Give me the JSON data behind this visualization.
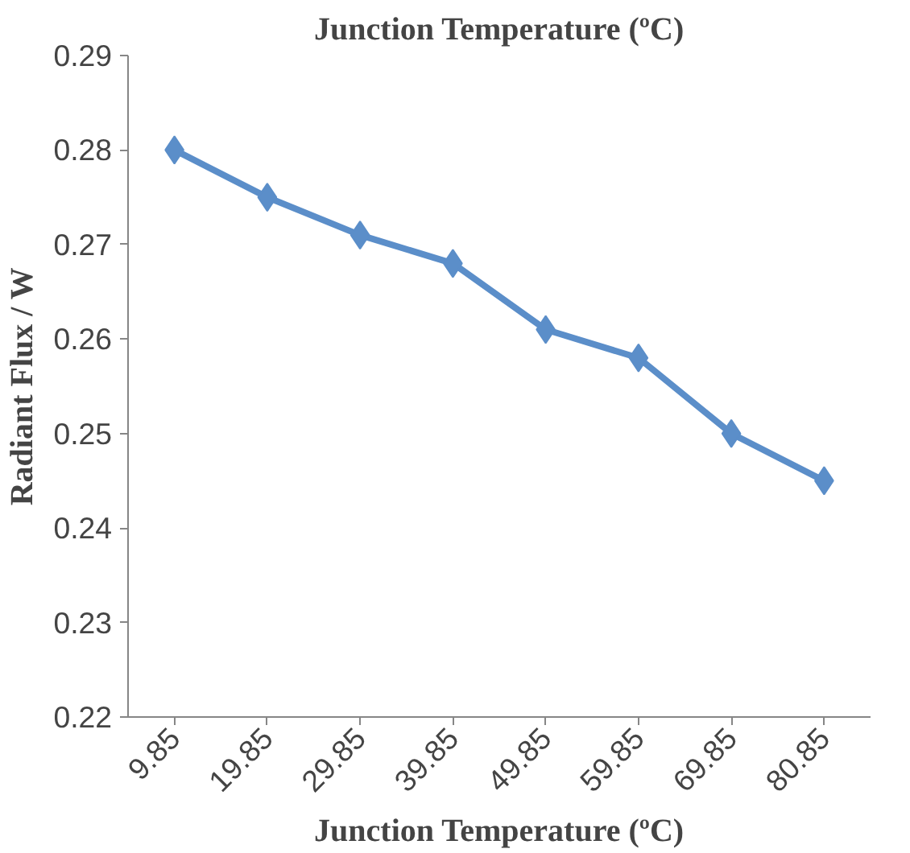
{
  "chart_data": {
    "type": "line",
    "title": "Junction Temperature (ºC)",
    "xlabel": "Junction Temperature (ºC)",
    "ylabel": "Radiant Flux / W",
    "categories": [
      "9.85",
      "19.85",
      "29.85",
      "39.85",
      "49.85",
      "59.85",
      "69.85",
      "80.85"
    ],
    "series": [
      {
        "color": "#5b8ec9",
        "values": [
          0.28,
          0.275,
          0.271,
          0.268,
          0.261,
          0.258,
          0.25,
          0.245
        ]
      }
    ],
    "ylim": [
      0.22,
      0.29
    ],
    "yticks": [
      0.22,
      0.23,
      0.24,
      0.25,
      0.26,
      0.27,
      0.28,
      0.29
    ],
    "marker": "diamond",
    "line_style": "solid",
    "grid": false
  }
}
